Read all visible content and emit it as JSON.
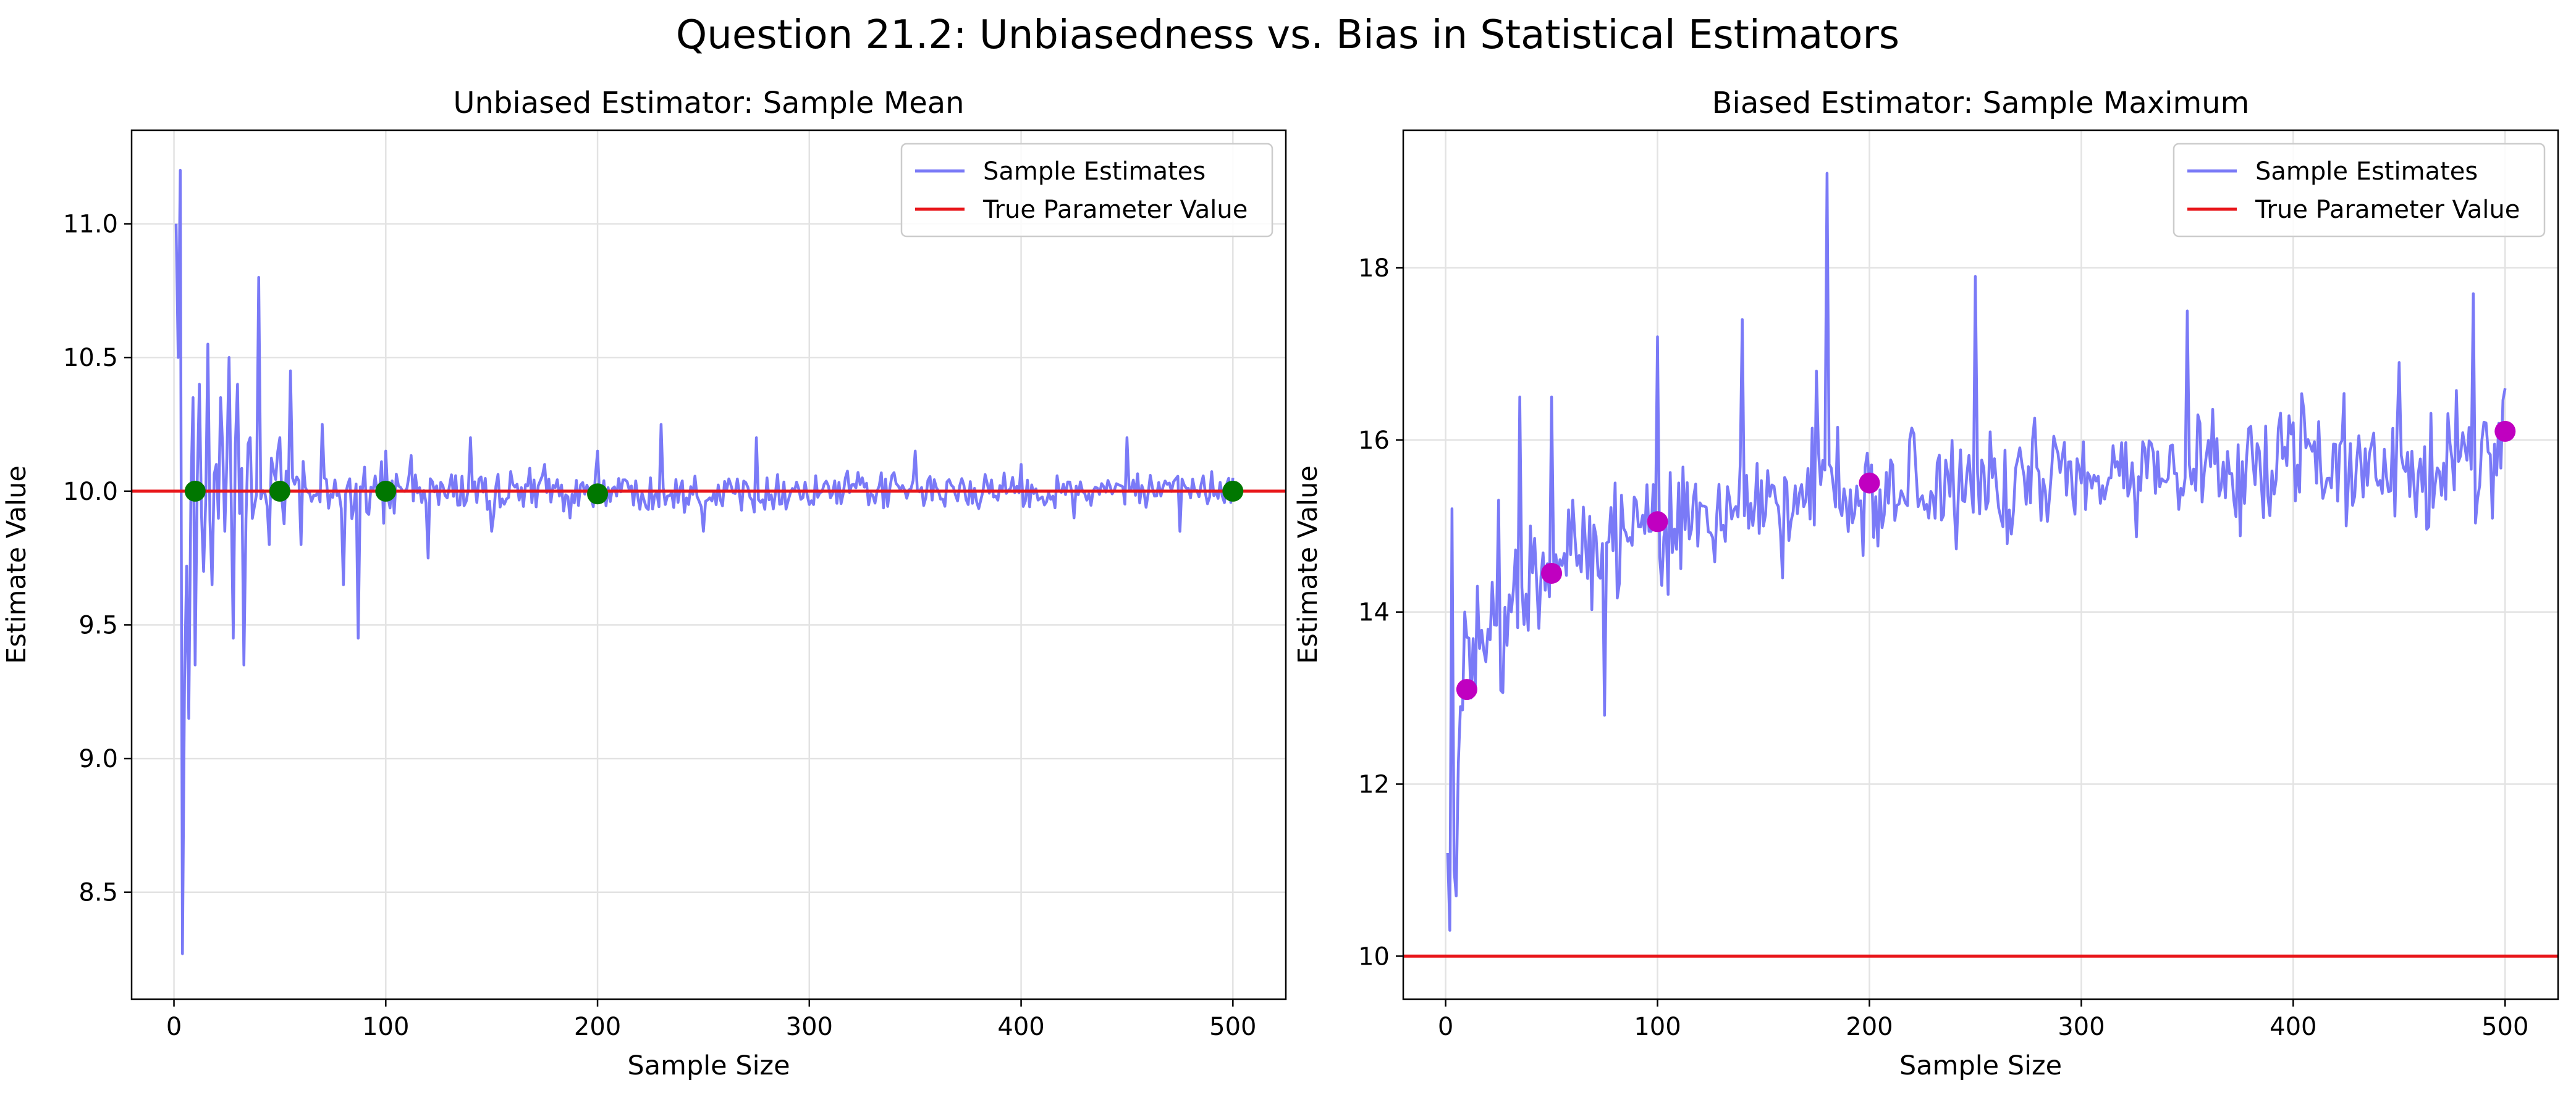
{
  "figure": {
    "title": "Question 21.2: Unbiasedness vs. Bias in Statistical Estimators"
  },
  "chart_data": [
    {
      "type": "line",
      "title": "Unbiased Estimator: Sample Mean",
      "xlabel": "Sample Size",
      "ylabel": "Estimate Value",
      "xlim": [
        -20,
        525
      ],
      "ylim": [
        8.1,
        11.35
      ],
      "xticks": [
        "0",
        "100",
        "200",
        "300",
        "400",
        "500"
      ],
      "yticks": [
        "8.5",
        "9.0",
        "9.5",
        "10.0",
        "10.5",
        "11.0"
      ],
      "grid": true,
      "legend": {
        "position": "top-right",
        "entries": [
          {
            "label": "Sample Estimates",
            "color": "#7a7af7"
          },
          {
            "label": "True Parameter Value",
            "color": "#e8161a"
          }
        ]
      },
      "true_value": 10.0,
      "series": [
        {
          "name": "Sample Estimates",
          "color": "#7a7af7",
          "x": [
            1,
            2,
            3,
            4,
            5,
            6,
            7,
            8,
            9,
            10,
            12,
            14,
            16,
            18,
            20,
            22,
            24,
            26,
            28,
            30,
            33,
            36,
            40,
            45,
            50,
            55,
            60,
            70,
            80,
            87,
            100,
            120,
            140,
            150,
            175,
            200,
            225,
            230,
            250,
            275,
            300,
            325,
            350,
            375,
            400,
            425,
            450,
            475,
            500
          ],
          "y": [
            11.0,
            10.5,
            11.2,
            8.27,
            9.3,
            9.72,
            9.15,
            10.0,
            10.35,
            9.35,
            10.4,
            9.7,
            10.55,
            9.65,
            10.1,
            10.35,
            9.85,
            10.5,
            9.45,
            10.4,
            9.35,
            10.2,
            10.8,
            9.8,
            10.2,
            10.45,
            9.8,
            10.25,
            9.65,
            9.45,
            10.15,
            9.75,
            10.2,
            9.85,
            10.1,
            10.15,
            10.05,
            10.25,
            9.85,
            10.2,
            9.95,
            10.05,
            10.15,
            9.95,
            10.1,
            9.9,
            10.2,
            9.85,
            10.05
          ]
        }
      ],
      "markers": {
        "color": "#007700",
        "x": [
          10,
          50,
          100,
          200,
          500
        ],
        "y": [
          10.0,
          10.0,
          10.0,
          9.99,
          10.0
        ]
      }
    },
    {
      "type": "line",
      "title": "Biased Estimator: Sample Maximum",
      "xlabel": "Sample Size",
      "ylabel": "Estimate Value",
      "xlim": [
        -20,
        525
      ],
      "ylim": [
        9.5,
        19.6
      ],
      "xticks": [
        "0",
        "100",
        "200",
        "300",
        "400",
        "500"
      ],
      "yticks": [
        "10",
        "12",
        "14",
        "16",
        "18"
      ],
      "grid": true,
      "legend": {
        "position": "top-right",
        "entries": [
          {
            "label": "Sample Estimates",
            "color": "#7a7af7"
          },
          {
            "label": "True Parameter Value",
            "color": "#e8161a"
          }
        ]
      },
      "true_value": 10.0,
      "series": [
        {
          "name": "Sample Estimates",
          "color": "#7a7af7",
          "x": [
            1,
            2,
            3,
            4,
            5,
            7,
            9,
            12,
            15,
            20,
            25,
            30,
            35,
            40,
            50,
            60,
            75,
            80,
            100,
            110,
            140,
            150,
            175,
            180,
            200,
            250,
            300,
            350,
            400,
            450,
            485,
            500
          ],
          "y": [
            11.2,
            10.3,
            15.2,
            11.0,
            10.7,
            12.9,
            14.0,
            13.0,
            14.3,
            13.8,
            15.3,
            14.2,
            16.5,
            15.0,
            16.5,
            15.3,
            12.8,
            15.5,
            17.2,
            15.5,
            17.4,
            15.0,
            16.8,
            19.1,
            15.5,
            17.9,
            15.5,
            17.5,
            16.2,
            16.9,
            17.7,
            16.6
          ]
        }
      ],
      "markers": {
        "color": "#c000c0",
        "x": [
          10,
          50,
          100,
          200,
          500
        ],
        "y": [
          13.1,
          14.45,
          15.05,
          15.5,
          16.1
        ]
      }
    }
  ]
}
